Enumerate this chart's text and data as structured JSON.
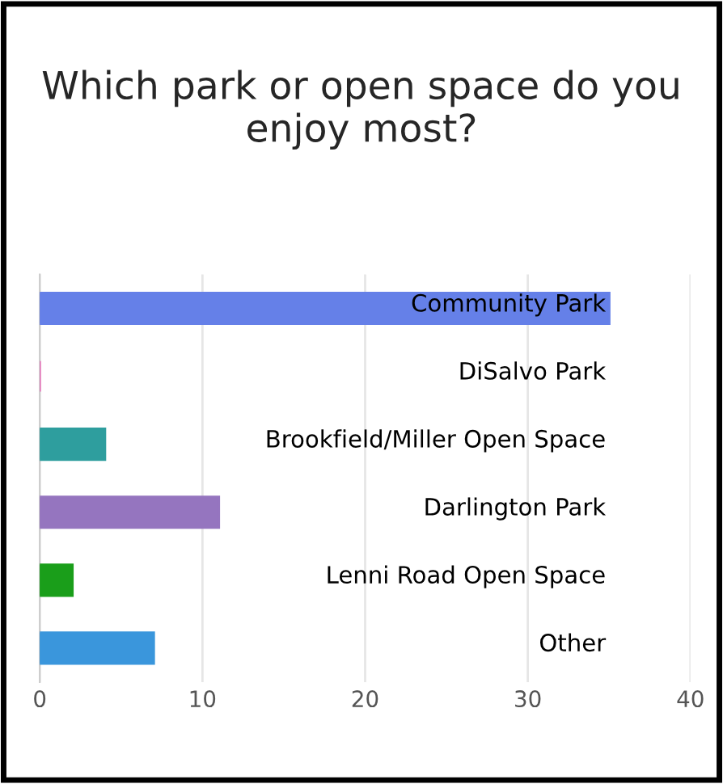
{
  "chart_data": {
    "type": "bar",
    "orientation": "horizontal",
    "title": "Which park or open space do you enjoy most?",
    "categories": [
      "Community Park",
      "DiSalvo Park",
      "Brookfield/Miller Open Space",
      "Darlington Park",
      "Lenni Road Open Space",
      "Other"
    ],
    "values": [
      35,
      0,
      4,
      11,
      2,
      7
    ],
    "colors": [
      "#6580e8",
      "#e87fc0",
      "#2e9e9e",
      "#9575bf",
      "#1a9e1a",
      "#3a96dc"
    ],
    "xlim": [
      0,
      40
    ],
    "xticks": [
      0,
      10,
      20,
      30,
      40
    ],
    "grid": "x",
    "tick_labels": "x"
  }
}
